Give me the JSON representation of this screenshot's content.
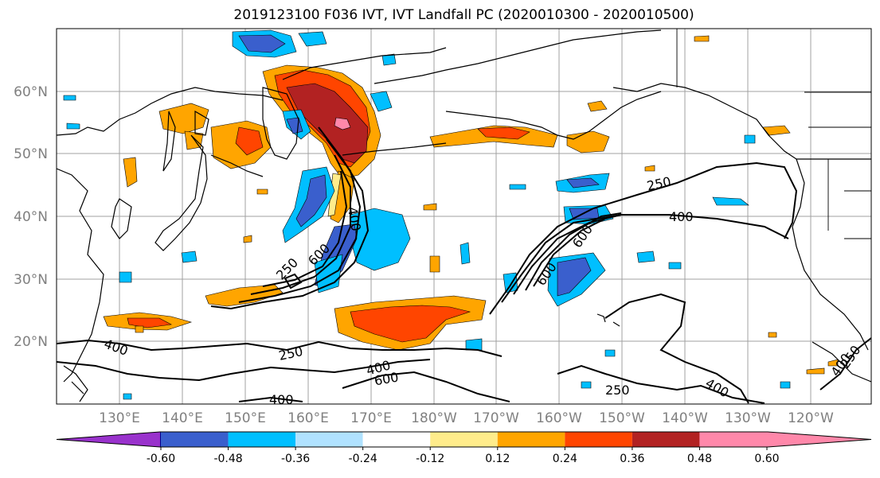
{
  "title": "2019123100 F036 IVT, IVT Landfall PC (2020010300 - 2020010500)",
  "lat_ticks": [
    "60°N",
    "50°N",
    "40°N",
    "30°N",
    "20°N"
  ],
  "lon_ticks": [
    "130°E",
    "140°E",
    "150°E",
    "160°E",
    "170°E",
    "180°W",
    "170°W",
    "160°W",
    "150°W",
    "140°W",
    "130°W",
    "120°W"
  ],
  "colorbar": {
    "labels": [
      "-0.60",
      "-0.48",
      "-0.36",
      "-0.24",
      "-0.12",
      "0.12",
      "0.24",
      "0.36",
      "0.48",
      "0.60"
    ],
    "colors": [
      "#9932cc",
      "#00008b",
      "#3a5fcd",
      "#00bfff",
      "#b0e2ff",
      "#ffffff",
      "#ffec8b",
      "#ffa500",
      "#ff4500",
      "#b22222",
      "#ff88aa"
    ]
  },
  "contour_labels": {
    "west_250": "250",
    "west_600": "600",
    "west_400": "400",
    "east_250": "250",
    "east_400": "400",
    "east_600": "600",
    "east_600b": "600",
    "south_400a": "400",
    "south_250": "250",
    "south_400b": "400",
    "south_600": "600",
    "south_400c": "400",
    "southeast_250": "250",
    "southeast_400": "400",
    "far_east_400": "400",
    "far_east_250": "250"
  }
}
